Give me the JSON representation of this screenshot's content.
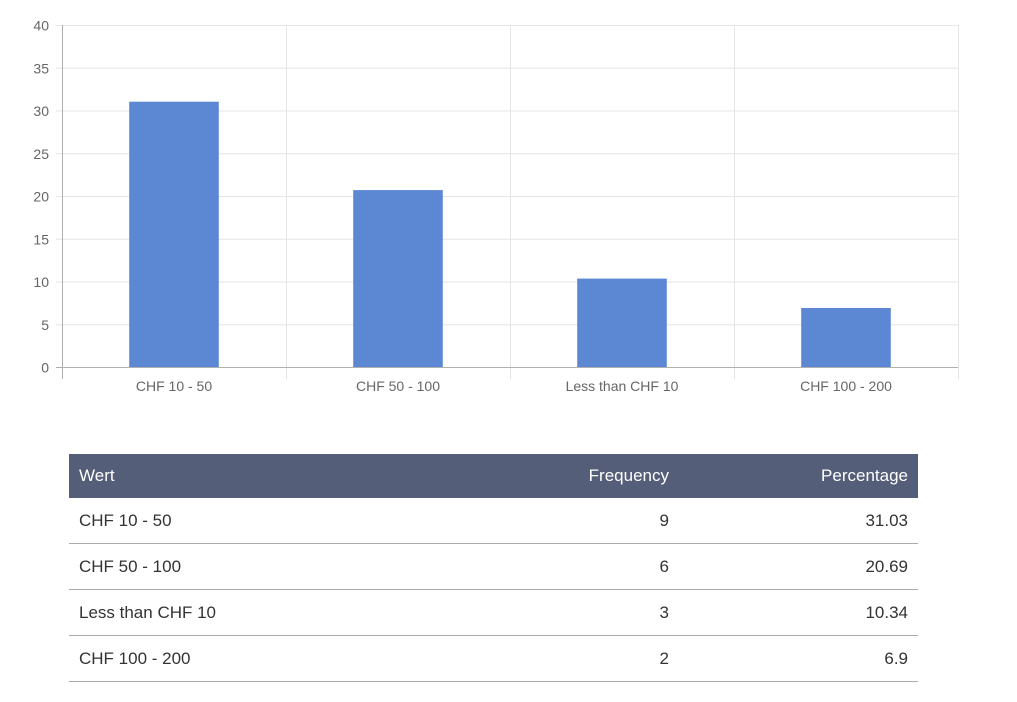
{
  "chart_data": {
    "type": "bar",
    "categories": [
      "CHF 10 - 50",
      "CHF 50 - 100",
      "Less than CHF 10",
      "CHF 100 - 200"
    ],
    "values": [
      31.03,
      20.69,
      10.34,
      6.9
    ],
    "ylim": [
      0,
      40
    ],
    "yticks": [
      0,
      5,
      10,
      15,
      20,
      25,
      30,
      35,
      40
    ],
    "bar_color": "#5b87d3",
    "grid": true,
    "legend": "none"
  },
  "table": {
    "headers": [
      "Wert",
      "Frequency",
      "Percentage"
    ],
    "rows": [
      [
        "CHF 10 - 50",
        "9",
        "31.03"
      ],
      [
        "CHF 50 - 100",
        "6",
        "20.69"
      ],
      [
        "Less than CHF 10",
        "3",
        "10.34"
      ],
      [
        "CHF 100 - 200",
        "2",
        "6.9"
      ]
    ],
    "header_color": "#555e78"
  }
}
